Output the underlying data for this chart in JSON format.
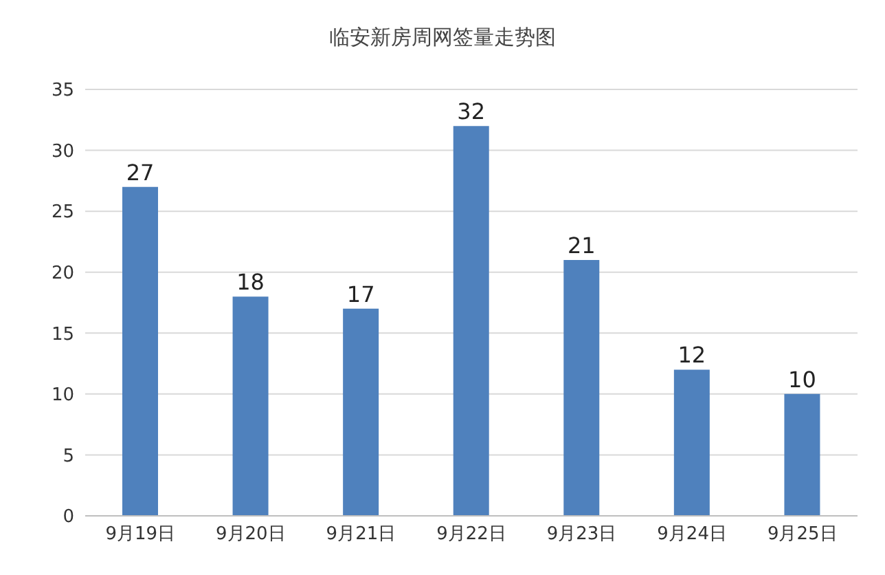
{
  "chart_data": {
    "type": "bar",
    "title": "临安新房周网签量走势图",
    "categories": [
      "9月19日",
      "9月20日",
      "9月21日",
      "9月22日",
      "9月23日",
      "9月24日",
      "9月25日"
    ],
    "values": [
      27,
      18,
      17,
      32,
      21,
      12,
      10
    ],
    "color": "#4f81bd",
    "ylim": [
      0,
      35
    ],
    "yticks": [
      0,
      5,
      10,
      15,
      20,
      25,
      30,
      35
    ],
    "grid": "y",
    "data_labels": true
  }
}
